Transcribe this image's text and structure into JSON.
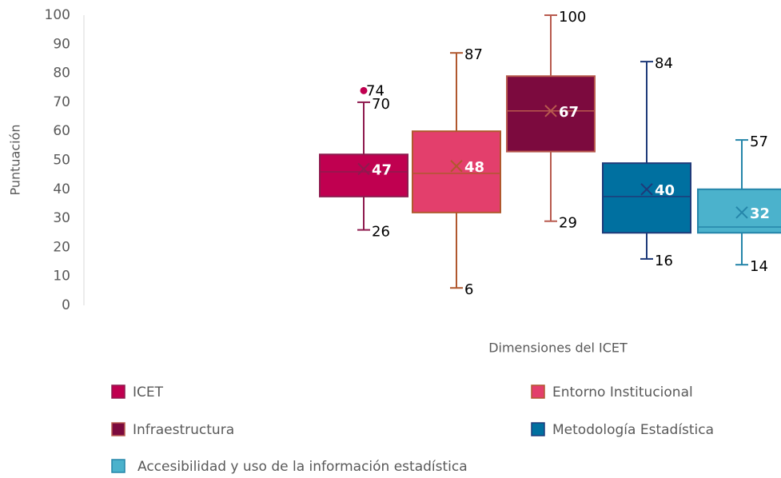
{
  "chart_data": {
    "type": "box",
    "ylabel": "Puntuación",
    "xlabel": "Dimensiones del ICET",
    "ylim": [
      0,
      100
    ],
    "yticks": [
      0,
      10,
      20,
      30,
      40,
      50,
      60,
      70,
      80,
      90,
      100
    ],
    "series": [
      {
        "name": "ICET",
        "color": "#c00050",
        "stroke": "#8e1a4e",
        "min": 26,
        "q1": 37.5,
        "median": 46,
        "q3": 52,
        "max": 70,
        "mean": 47,
        "outliers": [
          74
        ]
      },
      {
        "name": "Entorno Institucional",
        "color": "#e33f6c",
        "stroke": "#b0582e",
        "min": 6,
        "q1": 32,
        "median": 45.5,
        "q3": 60,
        "max": 87,
        "mean": 48,
        "outliers": []
      },
      {
        "name": "Infraestructura",
        "color": "#7c0a3e",
        "stroke": "#b85a4e",
        "min": 29,
        "q1": 53,
        "median": 67,
        "q3": 79,
        "max": 100,
        "mean": 67,
        "outliers": []
      },
      {
        "name": "Metodología Estadística",
        "color": "#0070a0",
        "stroke": "#1f3b7a",
        "min": 16,
        "q1": 25,
        "median": 37.5,
        "q3": 49,
        "max": 84,
        "mean": 40,
        "outliers": []
      },
      {
        "name": "Accesibilidad y uso de la información estadística",
        "color": "#4bb2cc",
        "stroke": "#2585a9",
        "min": 14,
        "q1": 25,
        "median": 27,
        "q3": 40,
        "max": 57,
        "mean": 32,
        "outliers": []
      }
    ]
  }
}
